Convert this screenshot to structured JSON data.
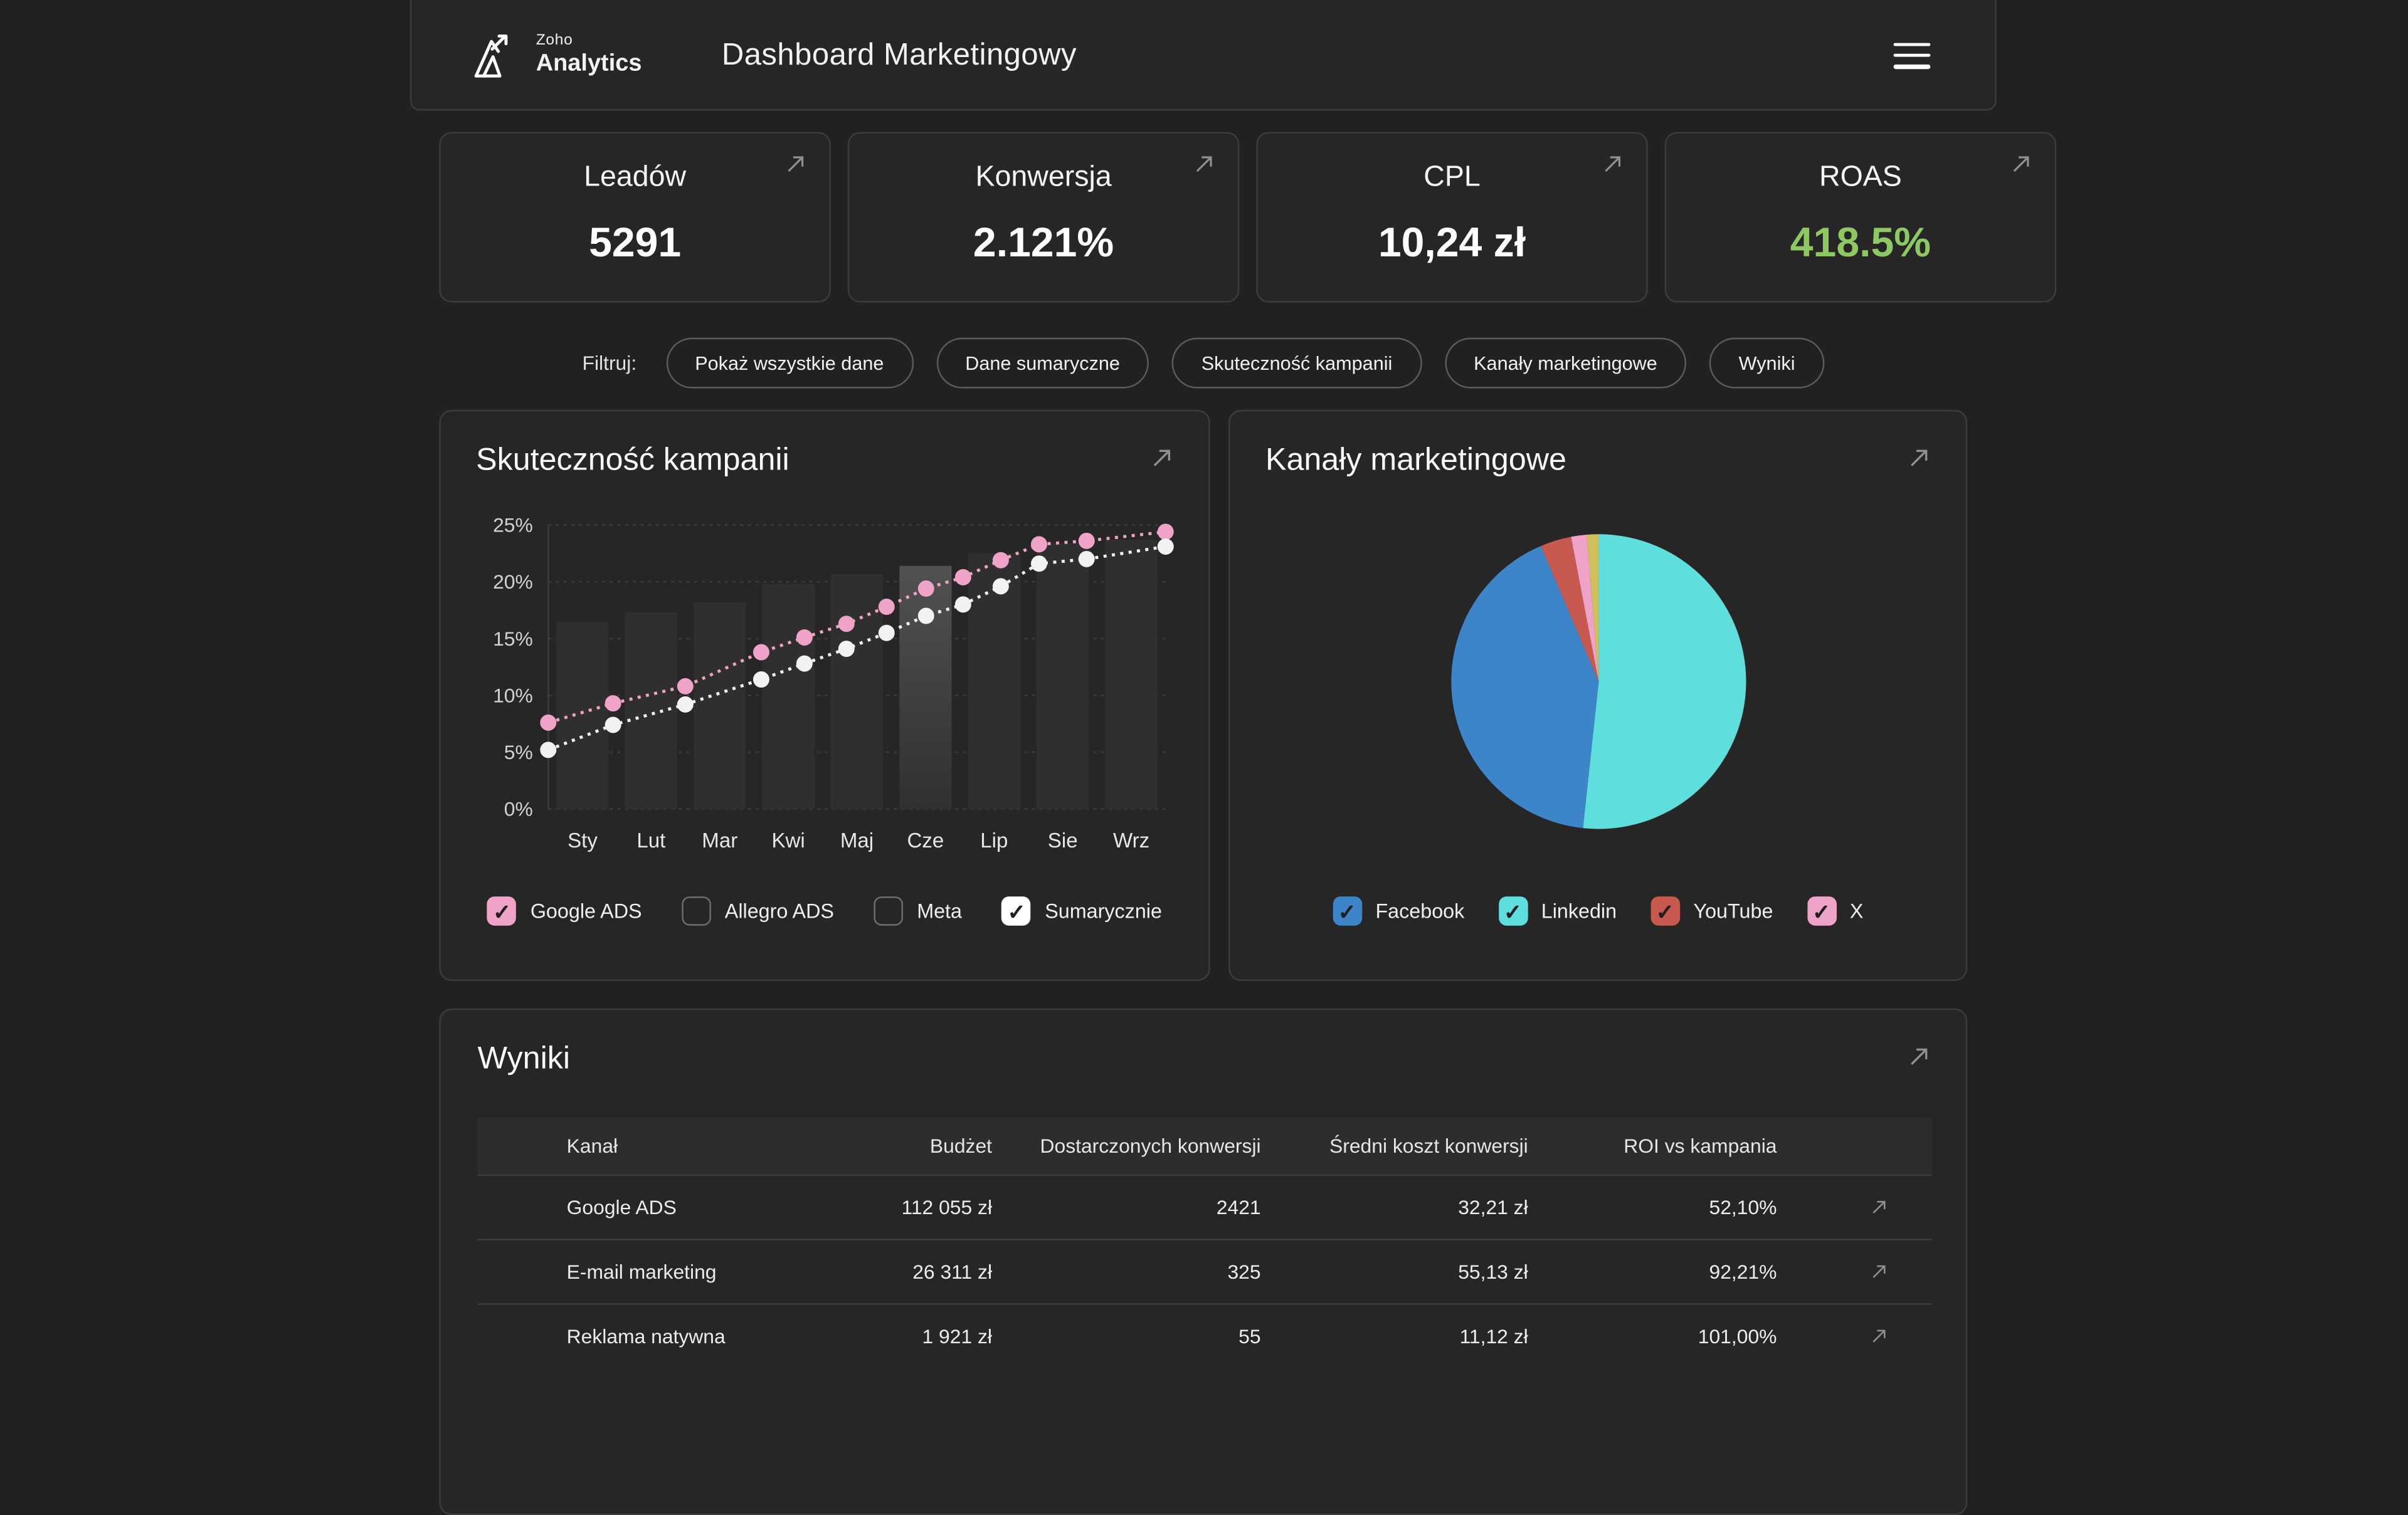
{
  "header": {
    "logo_small": "Zoho",
    "logo_bold": "Analytics",
    "title": "Dashboard Marketingowy"
  },
  "kpis": [
    {
      "label": "Leadów",
      "value": "5291"
    },
    {
      "label": "Konwersja",
      "value": "2.121%"
    },
    {
      "label": "CPL",
      "value": "10,24 zł"
    },
    {
      "label": "ROAS",
      "value": "418.5%",
      "value_color": "#8ec863"
    }
  ],
  "filters": {
    "label": "Filtruj:",
    "chips": [
      "Pokaż wszystkie dane",
      "Dane sumaryczne",
      "Skuteczność kampanii",
      "Kanały marketingowe",
      "Wyniki"
    ]
  },
  "campaign_card": {
    "title": "Skuteczność kampanii",
    "checkboxes": [
      {
        "label": "Google ADS",
        "checked": true,
        "color": "#f0a3c8"
      },
      {
        "label": "Allegro ADS",
        "checked": false
      },
      {
        "label": "Meta",
        "checked": false
      },
      {
        "label": "Sumarycznie",
        "checked": true,
        "color": "#ffffff"
      }
    ]
  },
  "channels_card": {
    "title": "Kanały marketingowe",
    "legend": [
      {
        "label": "Facebook",
        "checked": true,
        "color": "#3c85c8"
      },
      {
        "label": "Linkedin",
        "checked": true,
        "color": "#5fdede"
      },
      {
        "label": "YouTube",
        "checked": true,
        "color": "#c7594f"
      },
      {
        "label": "X",
        "checked": true,
        "color": "#f0a3c8"
      }
    ]
  },
  "results_card": {
    "title": "Wyniki",
    "columns": [
      "Kanał",
      "Budżet",
      "Dostarczonych konwersji",
      "Średni koszt konwersji",
      "ROI vs kampania"
    ],
    "rows": [
      [
        "Google ADS",
        "112 055 zł",
        "2421",
        "32,21 zł",
        "52,10%"
      ],
      [
        "E-mail marketing",
        "26 311 zł",
        "325",
        "55,13 zł",
        "92,21%"
      ],
      [
        "Reklama natywna",
        "1 921 zł",
        "55",
        "11,12 zł",
        "101,00%"
      ]
    ]
  },
  "chart_data": [
    {
      "type": "bar",
      "title": "Skuteczność kampanii",
      "categories": [
        "Sty",
        "Lut",
        "Mar",
        "Kwi",
        "Maj",
        "Cze",
        "Lip",
        "Sie",
        "Wrz"
      ],
      "bar_values": [
        16.5,
        17.3,
        18.2,
        19.8,
        20.7,
        21.4,
        22.5,
        23.4,
        23.7
      ],
      "bar_color": "#2f2f2f",
      "highlight_index": 5,
      "ylim": [
        0,
        25
      ],
      "y_ticks": [
        "0%",
        "5%",
        "10%",
        "15%",
        "20%",
        "25%"
      ],
      "grid": true,
      "x_positions": [
        0,
        0.105,
        0.222,
        0.345,
        0.415,
        0.483,
        0.548,
        0.612,
        0.672,
        0.733,
        0.795,
        0.872,
        1.0
      ],
      "series": [
        {
          "name": "Google ADS",
          "color": "#f0a3c8",
          "values": [
            7.6,
            9.3,
            10.8,
            13.8,
            15.1,
            16.3,
            17.8,
            19.4,
            20.4,
            21.9,
            23.3,
            23.6,
            24.4
          ]
        },
        {
          "name": "Sumarycznie",
          "color": "#f2f2f2",
          "values": [
            5.2,
            7.4,
            9.2,
            11.4,
            12.8,
            14.1,
            15.5,
            17.0,
            18.0,
            19.6,
            21.6,
            22.0,
            23.1
          ]
        }
      ]
    },
    {
      "type": "pie",
      "title": "Kanały marketingowe",
      "legend_position": "bottom",
      "slices": [
        {
          "label": "Linkedin",
          "value": 51.7,
          "color": "#5fdede"
        },
        {
          "label": "Facebook",
          "value": 41.9,
          "color": "#3c85c8"
        },
        {
          "label": "YouTube",
          "value": 3.4,
          "color": "#c7594f"
        },
        {
          "label": "X",
          "value": 1.7,
          "color": "#f0a3c8"
        },
        {
          "label": "",
          "value": 1.3,
          "color": "#cfc05c"
        }
      ]
    }
  ]
}
